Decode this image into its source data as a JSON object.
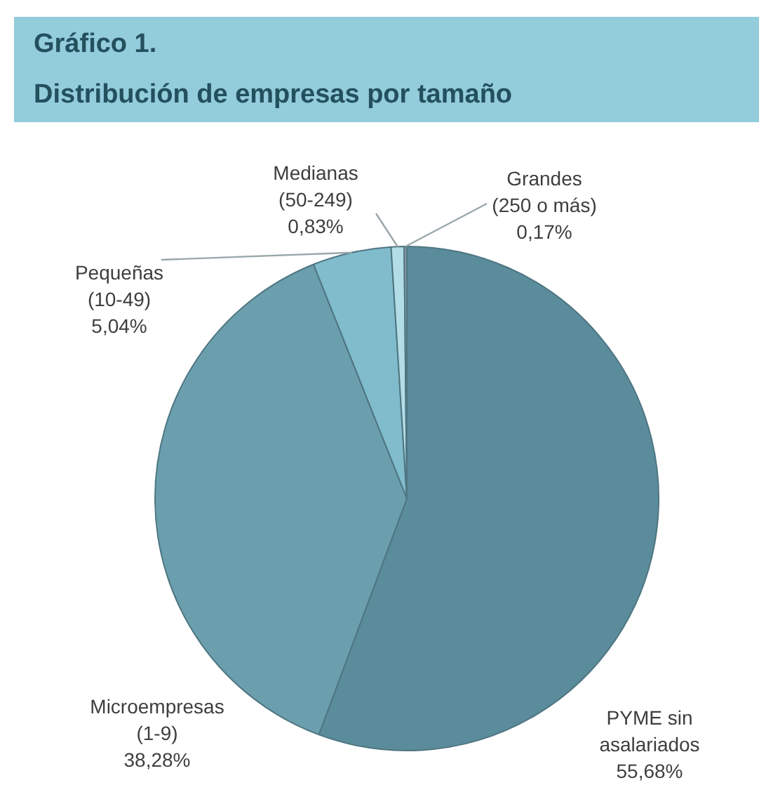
{
  "chart_data": {
    "type": "pie",
    "title": "Gráfico 1.",
    "subtitle": "Distribución de empresas por tamaño",
    "categories": [
      "PYME sin asalariados",
      "Microempresas (1-9)",
      "Pequeñas (10-49)",
      "Medianas (50-249)",
      "Grandes (250 o más)"
    ],
    "values": [
      55.68,
      38.28,
      5.04,
      0.83,
      0.17
    ],
    "value_labels": [
      "55,68%",
      "38,28%",
      "5,04%",
      "0,83%",
      "0,17%"
    ],
    "colors": [
      "#5b8c9b",
      "#6c9fae",
      "#80bccb",
      "#b3dde6",
      "#8c9ea3"
    ],
    "legend": false
  }
}
